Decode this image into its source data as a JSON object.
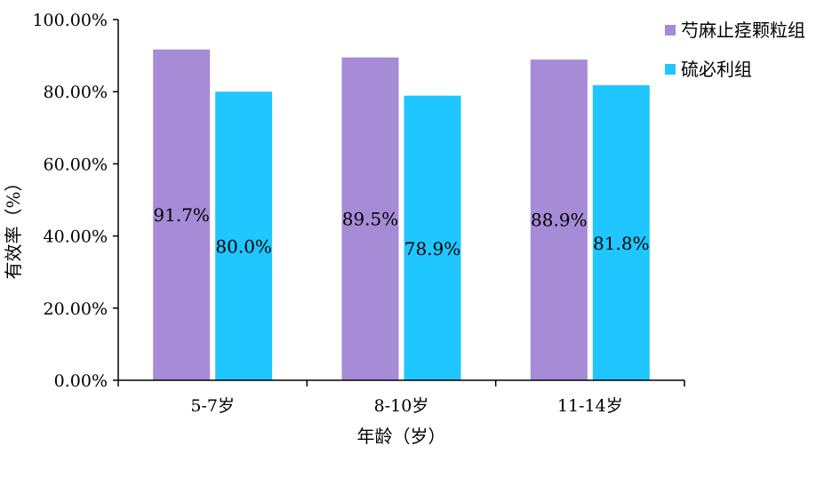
{
  "chart_data": {
    "type": "bar",
    "categories": [
      "5-7岁",
      "8-10岁",
      "11-14岁"
    ],
    "series": [
      {
        "name": "芍麻止痉颗粒组",
        "values": [
          91.7,
          89.5,
          88.9
        ],
        "labels": [
          "91.7%",
          "89.5%",
          "88.9%"
        ],
        "color": "#A68BD6"
      },
      {
        "name": "硫必利组",
        "values": [
          80.0,
          78.9,
          81.8
        ],
        "labels": [
          "80.0%",
          "78.9%",
          "81.8%"
        ],
        "color": "#1FC6FF"
      }
    ],
    "xlabel": "年龄（岁）",
    "ylabel": "有效率（%）",
    "ylim": [
      0,
      100
    ],
    "yticks": [
      "0.00%",
      "20.00%",
      "40.00%",
      "60.00%",
      "80.00%",
      "100.00%"
    ],
    "grid": false,
    "legend_position": "top-right"
  }
}
